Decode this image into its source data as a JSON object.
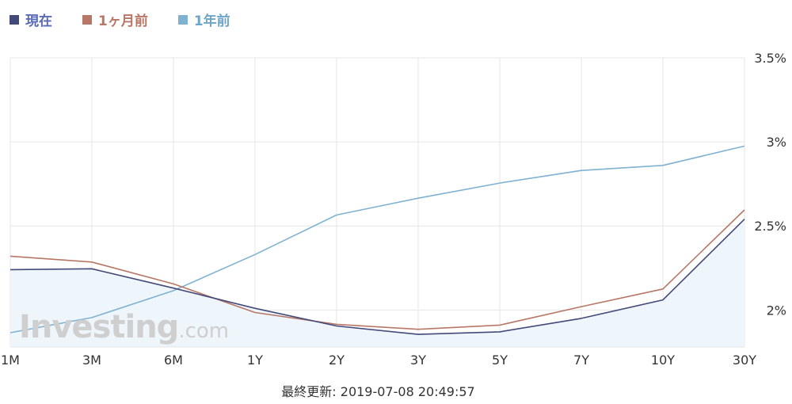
{
  "legend": [
    {
      "label": "現在",
      "color": "#434a7a",
      "text_color": "#5a6ab5"
    },
    {
      "label": "1ヶ月前",
      "color": "#b87766",
      "text_color": "#b87766"
    },
    {
      "label": "1年前",
      "color": "#7fb2d1",
      "text_color": "#6fa5c8"
    }
  ],
  "watermark": {
    "main": "Investing",
    "tld": ".com"
  },
  "footer": "最終更新: 2019-07-08 20:49:57",
  "chart_data": {
    "type": "line",
    "categories": [
      "1M",
      "3M",
      "6M",
      "1Y",
      "2Y",
      "3Y",
      "5Y",
      "7Y",
      "10Y",
      "30Y"
    ],
    "y_ticks": [
      "3.5%",
      "3%",
      "2.5%",
      "2%"
    ],
    "y_tick_values": [
      3.5,
      3.0,
      2.5,
      2.0
    ],
    "ylim": [
      1.78,
      3.5
    ],
    "grid": true,
    "y_axis_side": "right",
    "legend_position": "top-left",
    "series": [
      {
        "name": "現在",
        "color": "#434a7a",
        "filled": true,
        "fill_color": "#eef5fb",
        "values": [
          2.24,
          2.245,
          2.13,
          2.01,
          1.905,
          1.855,
          1.87,
          1.95,
          2.06,
          2.54
        ]
      },
      {
        "name": "1ヶ月前",
        "color": "#b87766",
        "filled": false,
        "values": [
          2.32,
          2.285,
          2.155,
          1.985,
          1.915,
          1.885,
          1.91,
          2.02,
          2.125,
          2.595
        ]
      },
      {
        "name": "1年前",
        "color": "#7fb2d1",
        "filled": false,
        "values": [
          1.865,
          1.955,
          2.115,
          2.33,
          2.565,
          2.665,
          2.755,
          2.83,
          2.86,
          2.975
        ]
      }
    ]
  }
}
